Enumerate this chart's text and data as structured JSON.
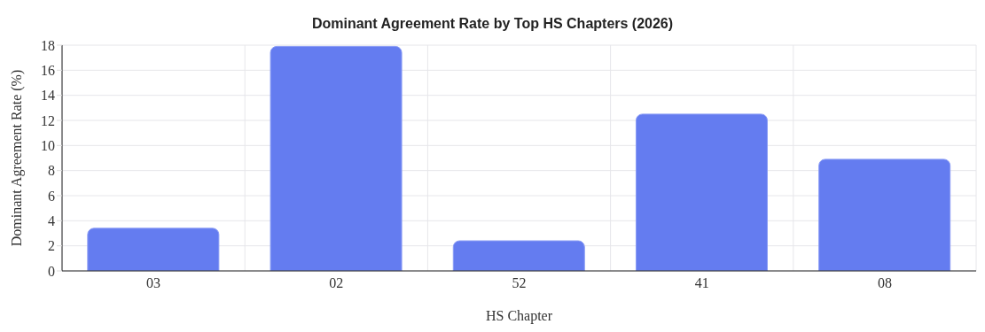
{
  "chart_data": {
    "type": "bar",
    "title": "Dominant Agreement Rate by Top HS Chapters (2026)",
    "xlabel": "HS Chapter",
    "ylabel": "Dominant Agreement Rate (%)",
    "categories": [
      "03",
      "02",
      "52",
      "41",
      "08"
    ],
    "values": [
      3.4,
      17.9,
      2.4,
      12.5,
      8.9
    ],
    "color": "#647cf0",
    "ylim": [
      0,
      18
    ],
    "yticks": [
      0,
      2,
      4,
      6,
      8,
      10,
      12,
      14,
      16,
      18
    ],
    "grid": true,
    "legend": false
  }
}
